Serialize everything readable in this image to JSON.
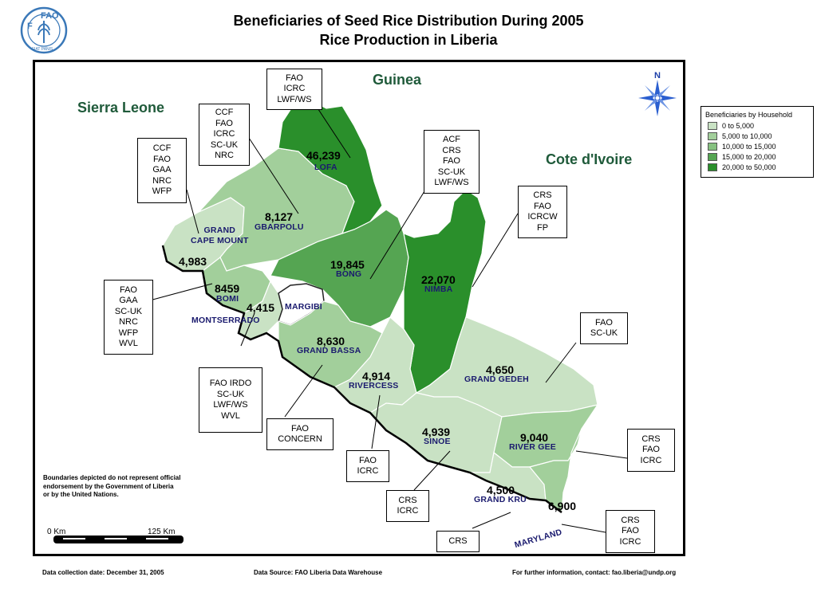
{
  "title": {
    "line1": "Beneficiaries of Seed Rice Distribution During 2005",
    "line2": "Rice Production in Liberia"
  },
  "logo": {
    "text": "FAO",
    "motto": "FIAT PANIS",
    "icon": "fao-wheat-logo"
  },
  "colors": {
    "c1": "#c9e2c4",
    "c2": "#a2cf9b",
    "c3": "#86c180",
    "c4": "#55a552",
    "c5": "#2a8f2b",
    "text_county": "#1a1a6e",
    "text_country": "#1f5a3a"
  },
  "countries": {
    "sierra_leone": "Sierra Leone",
    "guinea": "Guinea",
    "cote_divoire": "Cote d'Ivoire"
  },
  "counties": [
    {
      "id": "lofa",
      "name": "LOFA",
      "value": "46,239",
      "class": "20,000 to 50,000"
    },
    {
      "id": "gbarpolu",
      "name": "GBARPOLU",
      "value": "8,127",
      "class": "5,000 to 10,000"
    },
    {
      "id": "grand-cape-mount",
      "name": "GRAND\nCAPE MOUNT",
      "value": "4,983",
      "class": "0 to 5,000"
    },
    {
      "id": "bong",
      "name": "BONG",
      "value": "19,845",
      "class": "15,000 to 20,000"
    },
    {
      "id": "nimba",
      "name": "NIMBA",
      "value": "22,070",
      "class": "20,000 to 50,000"
    },
    {
      "id": "bomi",
      "name": "BOMI",
      "value": "8459",
      "class": "5,000 to 10,000"
    },
    {
      "id": "montserrado",
      "name": "MONTSERRADO",
      "value": "4,415",
      "class": "0 to 5,000"
    },
    {
      "id": "margibi",
      "name": "MARGIBI",
      "value": "",
      "class": ""
    },
    {
      "id": "grand-bassa",
      "name": "GRAND BASSA",
      "value": "8,630",
      "class": "5,000 to 10,000"
    },
    {
      "id": "rivercess",
      "name": "RIVERCESS",
      "value": "4,914",
      "class": "0 to 5,000"
    },
    {
      "id": "grand-gedeh",
      "name": "GRAND GEDEH",
      "value": "4,650",
      "class": "0 to 5,000"
    },
    {
      "id": "sinoe",
      "name": "SINOE",
      "value": "4,939",
      "class": "0 to 5,000"
    },
    {
      "id": "river-gee",
      "name": "RIVER GEE",
      "value": "9,040",
      "class": "5,000 to 10,000"
    },
    {
      "id": "grand-kru",
      "name": "GRAND KRU",
      "value": "4,500",
      "class": "0 to 5,000"
    },
    {
      "id": "maryland",
      "name": "MARYLAND",
      "value": "6,900",
      "class": "5,000 to 10,000"
    }
  ],
  "boxes": {
    "lofa": [
      "FAO",
      "ICRC",
      "LWF/WS"
    ],
    "gbarpolu": [
      "CCF",
      "FAO",
      "ICRC",
      "SC-UK",
      "NRC"
    ],
    "grand_cape_mount": [
      "CCF",
      "FAO",
      "GAA",
      "NRC",
      "WFP"
    ],
    "bong": [
      "ACF",
      "CRS",
      "FAO",
      "SC-UK",
      "LWF/WS"
    ],
    "nimba": [
      "CRS",
      "FAO",
      "ICRCW",
      "FP"
    ],
    "bomi": [
      "FAO",
      "GAA",
      "SC-UK",
      "NRC",
      "WFP",
      "WVL"
    ],
    "montserrado": [
      "FAO IRDO",
      "SC-UK",
      "LWF/WS",
      "WVL"
    ],
    "grand_bassa": [
      "FAO",
      "CONCERN"
    ],
    "rivercess": [
      "FAO",
      "ICRC"
    ],
    "sinoe": [
      "CRS",
      "ICRC"
    ],
    "grand_kru": [
      "CRS"
    ],
    "grand_gedeh": [
      "FAO",
      "SC-UK"
    ],
    "river_gee": [
      "CRS",
      "FAO",
      "ICRC"
    ],
    "maryland": [
      "CRS",
      "FAO",
      "ICRC"
    ]
  },
  "legend": {
    "title": "Beneficiaries by Household",
    "items": [
      {
        "label": "0 to 5,000",
        "color": "#c9e2c4"
      },
      {
        "label": "5,000 to 10,000",
        "color": "#a2cf9b"
      },
      {
        "label": "10,000 to 15,000",
        "color": "#86c180"
      },
      {
        "label": "15,000 to 20,000",
        "color": "#55a552"
      },
      {
        "label": "20,000 to 50,000",
        "color": "#2a8f2b"
      }
    ]
  },
  "compass": {
    "label": "N",
    "icon": "compass-rose-icon"
  },
  "disclaimer": {
    "line1": "Boundaries depicted do not represent official",
    "line2": "endorsement by the Government of Liberia",
    "line3": "or by the United Nations."
  },
  "scale": {
    "start": "0 Km",
    "end": "125 Km"
  },
  "footer": {
    "date": "Data collection date: December 31, 2005",
    "source": "Data Source: FAO Liberia Data Warehouse",
    "contact": "For further information, contact: fao.liberia@undp.org"
  }
}
